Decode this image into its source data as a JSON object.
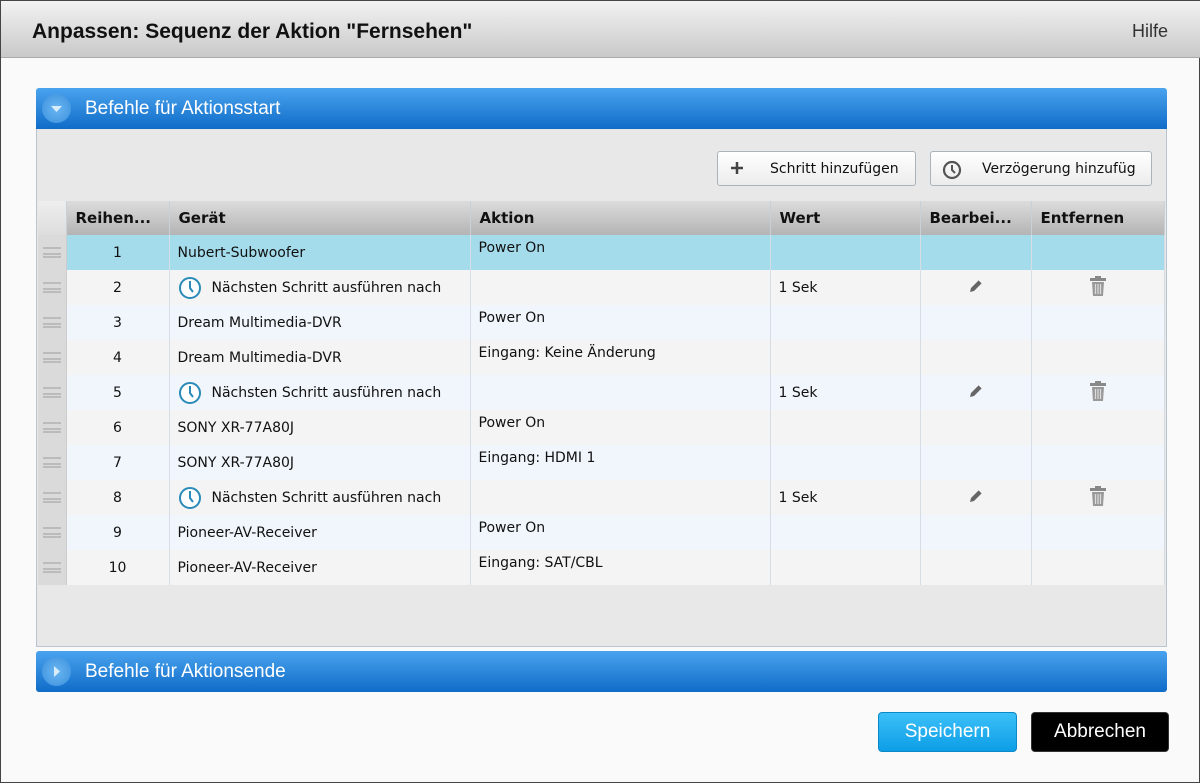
{
  "dialog": {
    "title": "Anpassen: Sequenz der Aktion \"Fernsehen\"",
    "help": "Hilfe"
  },
  "start_section": {
    "label": "Befehle für Aktionsstart",
    "expanded": true
  },
  "end_section": {
    "label": "Befehle für Aktionsende",
    "expanded": false
  },
  "toolbar": {
    "add_step": "Schritt hinzufügen",
    "add_delay": "Verzögerung hinzufüg"
  },
  "columns": [
    "Reihen...",
    "Gerät",
    "Aktion",
    "Wert",
    "Bearbei...",
    "Entfernen"
  ],
  "rows": [
    {
      "order": "1",
      "device": "Nubert-Subwoofer",
      "action": "Power On",
      "value": "",
      "delay": false,
      "selected": true
    },
    {
      "order": "2",
      "device": "Nächsten Schritt ausführen nach",
      "action": "",
      "value": "1 Sek",
      "delay": true
    },
    {
      "order": "3",
      "device": "Dream Multimedia-DVR",
      "action": "Power On",
      "value": "",
      "delay": false
    },
    {
      "order": "4",
      "device": "Dream Multimedia-DVR",
      "action": "Eingang: Keine Änderung",
      "value": "",
      "delay": false
    },
    {
      "order": "5",
      "device": "Nächsten Schritt ausführen nach",
      "action": "",
      "value": "1 Sek",
      "delay": true
    },
    {
      "order": "6",
      "device": "SONY XR-77A80J",
      "action": "Power On",
      "value": "",
      "delay": false
    },
    {
      "order": "7",
      "device": "SONY XR-77A80J",
      "action": "Eingang: HDMI 1",
      "value": "",
      "delay": false
    },
    {
      "order": "8",
      "device": "Nächsten Schritt ausführen nach",
      "action": "",
      "value": "1 Sek",
      "delay": true
    },
    {
      "order": "9",
      "device": "Pioneer-AV-Receiver",
      "action": "Power On",
      "value": "",
      "delay": false
    },
    {
      "order": "10",
      "device": "Pioneer-AV-Receiver",
      "action": "Eingang: SAT/CBL",
      "value": "",
      "delay": false
    }
  ],
  "footer": {
    "save": "Speichern",
    "cancel": "Abbrechen"
  },
  "colors": {
    "accent": "#1a7fd8",
    "selected_row": "#a4dcec",
    "save": "#1aa8ee",
    "cancel": "#000000"
  }
}
